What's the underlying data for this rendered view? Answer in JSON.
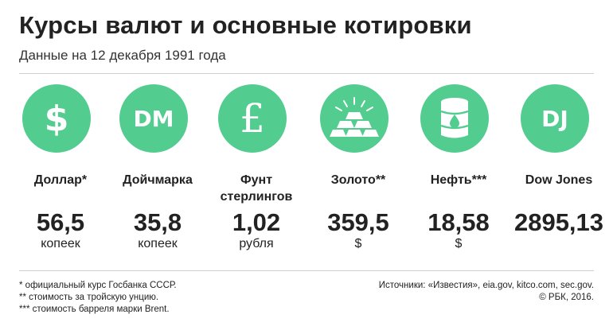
{
  "header": {
    "title": "Курсы валют и основные котировки",
    "subtitle": "Данные на 12 декабря 1991 года"
  },
  "accent_color": "#52cc8f",
  "items": [
    {
      "icon": "dollar-icon",
      "glyph": "$",
      "name": "Доллар*",
      "value": "56,5",
      "unit": "копеек"
    },
    {
      "icon": "dm-icon",
      "glyph": "DM",
      "name": "Дойчмарка",
      "value": "35,8",
      "unit": "копеек"
    },
    {
      "icon": "pound-icon",
      "glyph": "£",
      "name": "Фунт стерлингов",
      "value": "1,02",
      "unit": "рубля"
    },
    {
      "icon": "gold-bars-icon",
      "glyph": "",
      "name": "Золото**",
      "value": "359,5",
      "unit": "$"
    },
    {
      "icon": "oil-barrel-icon",
      "glyph": "",
      "name": "Нефть***",
      "value": "18,58",
      "unit": "$"
    },
    {
      "icon": "dj-icon",
      "glyph": "DJ",
      "name": "Dow Jones",
      "value": "2895,13",
      "unit": ""
    }
  ],
  "footnotes": [
    "* официальный курс Госбанка СССР.",
    "** стоимость за тройскую унцию.",
    "*** стоимость барреля марки Brent."
  ],
  "sources": {
    "line1": "Источники: «Известия», eia.gov, kitco.com, sec.gov.",
    "line2": "© РБК, 2016."
  }
}
